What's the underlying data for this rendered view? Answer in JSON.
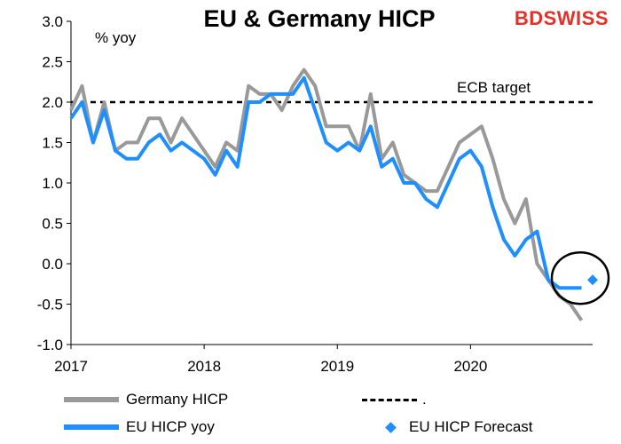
{
  "header": {
    "title": "EU & Germany HICP",
    "brand_bd": "BD",
    "brand_swiss": "SWISS",
    "unit_label": "% yoy"
  },
  "chart_data": {
    "type": "line",
    "ylim": [
      -1.0,
      3.0
    ],
    "yticks": [
      "3.0",
      "2.5",
      "2.0",
      "1.5",
      "1.0",
      "0.5",
      "0.0",
      "-0.5",
      "-1.0"
    ],
    "xticks": [
      "2017",
      "2018",
      "2019",
      "2020"
    ],
    "x_start": "2017-01",
    "x_end": "2020-12",
    "target": {
      "label": "ECB target",
      "value": 2.0
    },
    "grid": false,
    "legend_position": "bottom",
    "series": [
      {
        "name": "Germany HICP",
        "color": "#999999",
        "x": [
          "2017-01",
          "2017-02",
          "2017-03",
          "2017-04",
          "2017-05",
          "2017-06",
          "2017-07",
          "2017-08",
          "2017-09",
          "2017-10",
          "2017-11",
          "2017-12",
          "2018-01",
          "2018-02",
          "2018-03",
          "2018-04",
          "2018-05",
          "2018-06",
          "2018-07",
          "2018-08",
          "2018-09",
          "2018-10",
          "2018-11",
          "2018-12",
          "2019-01",
          "2019-02",
          "2019-03",
          "2019-04",
          "2019-05",
          "2019-06",
          "2019-07",
          "2019-08",
          "2019-09",
          "2019-10",
          "2019-11",
          "2019-12",
          "2020-01",
          "2020-02",
          "2020-03",
          "2020-04",
          "2020-05",
          "2020-06",
          "2020-07",
          "2020-08",
          "2020-09",
          "2020-10",
          "2020-11"
        ],
        "values": [
          1.9,
          2.2,
          1.5,
          2.0,
          1.4,
          1.5,
          1.5,
          1.8,
          1.8,
          1.5,
          1.8,
          1.6,
          1.4,
          1.2,
          1.5,
          1.4,
          2.2,
          2.1,
          2.1,
          1.9,
          2.2,
          2.4,
          2.2,
          1.7,
          1.7,
          1.7,
          1.4,
          2.1,
          1.3,
          1.5,
          1.1,
          1.0,
          0.9,
          0.9,
          1.2,
          1.5,
          1.6,
          1.7,
          1.3,
          0.8,
          0.5,
          0.8,
          0.0,
          -0.2,
          -0.4,
          -0.5,
          -0.7
        ]
      },
      {
        "name": "EU HICP yoy",
        "color": "#1f8fff",
        "x": [
          "2017-01",
          "2017-02",
          "2017-03",
          "2017-04",
          "2017-05",
          "2017-06",
          "2017-07",
          "2017-08",
          "2017-09",
          "2017-10",
          "2017-11",
          "2017-12",
          "2018-01",
          "2018-02",
          "2018-03",
          "2018-04",
          "2018-05",
          "2018-06",
          "2018-07",
          "2018-08",
          "2018-09",
          "2018-10",
          "2018-11",
          "2018-12",
          "2019-01",
          "2019-02",
          "2019-03",
          "2019-04",
          "2019-05",
          "2019-06",
          "2019-07",
          "2019-08",
          "2019-09",
          "2019-10",
          "2019-11",
          "2019-12",
          "2020-01",
          "2020-02",
          "2020-03",
          "2020-04",
          "2020-05",
          "2020-06",
          "2020-07",
          "2020-08",
          "2020-09",
          "2020-10",
          "2020-11"
        ],
        "values": [
          1.8,
          2.0,
          1.5,
          1.9,
          1.4,
          1.3,
          1.3,
          1.5,
          1.6,
          1.4,
          1.5,
          1.4,
          1.3,
          1.1,
          1.4,
          1.2,
          2.0,
          2.0,
          2.1,
          2.1,
          2.1,
          2.3,
          1.9,
          1.5,
          1.4,
          1.5,
          1.4,
          1.7,
          1.2,
          1.3,
          1.0,
          1.0,
          0.8,
          0.7,
          1.0,
          1.3,
          1.4,
          1.2,
          0.7,
          0.3,
          0.1,
          0.3,
          0.4,
          -0.2,
          -0.3,
          -0.3,
          -0.3
        ]
      },
      {
        "name": "EU HICP Forecast",
        "color": "#1f8fff",
        "marker": "diamond",
        "x": [
          "2020-12"
        ],
        "values": [
          -0.2
        ]
      }
    ],
    "dashed_legend_label": "."
  }
}
